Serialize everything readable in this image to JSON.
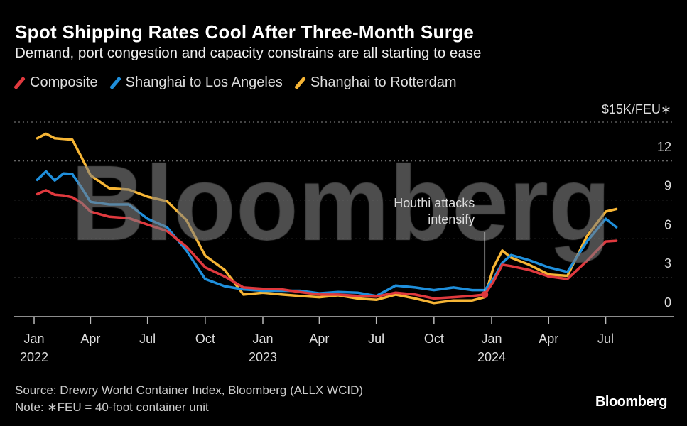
{
  "title": "Spot Shipping Rates Cool After Three-Month Surge",
  "subtitle": "Demand, port congestion and capacity constrains are all starting to ease",
  "footer": {
    "source": "Source: Drewry World Container Index, Bloomberg (ALLX WCID)",
    "note": "Note: ∗FEU = 40-foot container unit",
    "logo": "Bloomberg"
  },
  "watermark": "Bloomberg",
  "chart_data": {
    "type": "line",
    "title": "Spot Shipping Rates Cool After Three-Month Surge",
    "ylabel": "$15K/FEU∗",
    "ylim": [
      0,
      15
    ],
    "yticks": [
      0,
      3,
      6,
      9,
      12
    ],
    "xlim": [
      "2022-01-01",
      "2024-08-20"
    ],
    "xticks": [
      {
        "date": "2022-01-01",
        "label": "Jan",
        "year": "2022"
      },
      {
        "date": "2022-04-01",
        "label": "Apr",
        "year": ""
      },
      {
        "date": "2022-07-01",
        "label": "Jul",
        "year": ""
      },
      {
        "date": "2022-10-01",
        "label": "Oct",
        "year": ""
      },
      {
        "date": "2023-01-01",
        "label": "Jan",
        "year": "2023"
      },
      {
        "date": "2023-04-01",
        "label": "Apr",
        "year": ""
      },
      {
        "date": "2023-07-01",
        "label": "Jul",
        "year": ""
      },
      {
        "date": "2023-10-01",
        "label": "Oct",
        "year": ""
      },
      {
        "date": "2024-01-01",
        "label": "Jan",
        "year": "2024"
      },
      {
        "date": "2024-04-01",
        "label": "Apr",
        "year": ""
      },
      {
        "date": "2024-07-01",
        "label": "Jul",
        "year": ""
      }
    ],
    "grid": true,
    "legend_position": "top-left",
    "x": [
      "2022-01-06",
      "2022-01-20",
      "2022-02-03",
      "2022-02-17",
      "2022-03-03",
      "2022-03-17",
      "2022-04-01",
      "2022-05-01",
      "2022-06-01",
      "2022-07-01",
      "2022-08-01",
      "2022-09-01",
      "2022-10-01",
      "2022-11-01",
      "2022-12-01",
      "2023-01-01",
      "2023-02-01",
      "2023-03-01",
      "2023-04-01",
      "2023-05-01",
      "2023-06-01",
      "2023-07-01",
      "2023-08-01",
      "2023-09-01",
      "2023-10-01",
      "2023-11-01",
      "2023-12-01",
      "2023-12-21",
      "2024-01-04",
      "2024-01-18",
      "2024-02-01",
      "2024-03-01",
      "2024-04-01",
      "2024-05-01",
      "2024-06-01",
      "2024-07-01",
      "2024-07-18"
    ],
    "series": [
      {
        "name": "Composite",
        "color": "#e0393e",
        "values": [
          9.45,
          9.75,
          9.4,
          9.35,
          9.2,
          8.8,
          8.1,
          7.7,
          7.6,
          7.1,
          6.6,
          5.4,
          3.8,
          3.1,
          2.25,
          2.15,
          2.1,
          1.9,
          1.7,
          1.7,
          1.6,
          1.55,
          1.85,
          1.7,
          1.4,
          1.5,
          1.6,
          1.7,
          2.7,
          4.0,
          3.9,
          3.6,
          3.1,
          2.9,
          4.3,
          5.8,
          5.85
        ]
      },
      {
        "name": "Shanghai to Los Angeles",
        "color": "#1f8fdc",
        "values": [
          10.55,
          11.2,
          10.5,
          11.05,
          11.0,
          10.0,
          8.85,
          8.65,
          8.65,
          7.55,
          6.9,
          5.1,
          2.9,
          2.35,
          2.1,
          2.0,
          2.0,
          2.0,
          1.8,
          1.9,
          1.85,
          1.6,
          2.4,
          2.25,
          2.05,
          2.25,
          2.05,
          2.05,
          2.9,
          4.15,
          4.75,
          4.35,
          3.8,
          3.45,
          5.8,
          7.55,
          6.9
        ]
      },
      {
        "name": "Shanghai to Rotterdam",
        "color": "#f6b535",
        "values": [
          13.75,
          14.1,
          13.75,
          13.7,
          13.65,
          12.35,
          10.9,
          9.9,
          9.8,
          9.25,
          8.9,
          7.45,
          4.7,
          3.6,
          1.7,
          1.85,
          1.7,
          1.6,
          1.5,
          1.65,
          1.4,
          1.3,
          1.7,
          1.4,
          1.05,
          1.25,
          1.25,
          1.5,
          3.8,
          5.1,
          4.55,
          4.0,
          3.25,
          3.15,
          6.2,
          8.1,
          8.3
        ]
      }
    ],
    "annotations": [
      {
        "date": "2023-12-21",
        "value": 1.7,
        "text_line1": "Houthi attacks",
        "text_line2": "intensify"
      }
    ]
  }
}
